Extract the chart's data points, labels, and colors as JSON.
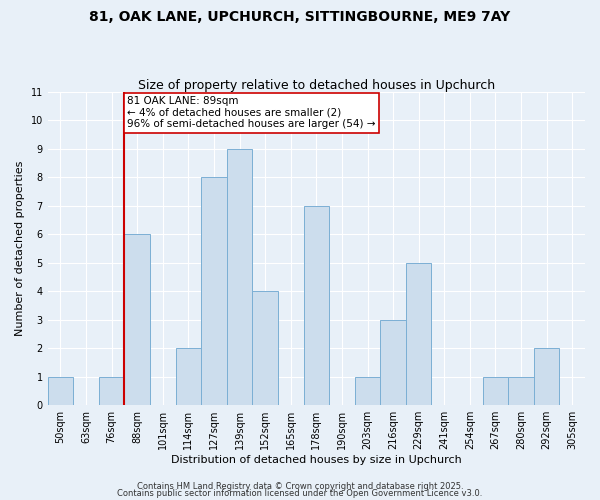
{
  "title1": "81, OAK LANE, UPCHURCH, SITTINGBOURNE, ME9 7AY",
  "title2": "Size of property relative to detached houses in Upchurch",
  "xlabel": "Distribution of detached houses by size in Upchurch",
  "ylabel": "Number of detached properties",
  "bin_labels": [
    "50sqm",
    "63sqm",
    "76sqm",
    "88sqm",
    "101sqm",
    "114sqm",
    "127sqm",
    "139sqm",
    "152sqm",
    "165sqm",
    "178sqm",
    "190sqm",
    "203sqm",
    "216sqm",
    "229sqm",
    "241sqm",
    "254sqm",
    "267sqm",
    "280sqm",
    "292sqm",
    "305sqm"
  ],
  "bar_heights": [
    1,
    0,
    1,
    6,
    0,
    2,
    8,
    9,
    4,
    0,
    7,
    0,
    1,
    3,
    5,
    0,
    0,
    1,
    1,
    2,
    0
  ],
  "bar_color": "#ccdded",
  "bar_edge_color": "#7bafd4",
  "reference_line_x_label": "88sqm",
  "reference_line_color": "#cc0000",
  "annotation_line1": "81 OAK LANE: 89sqm",
  "annotation_line2": "← 4% of detached houses are smaller (2)",
  "annotation_line3": "96% of semi-detached houses are larger (54) →",
  "ylim": [
    0,
    11
  ],
  "yticks": [
    0,
    1,
    2,
    3,
    4,
    5,
    6,
    7,
    8,
    9,
    10,
    11
  ],
  "footer1": "Contains HM Land Registry data © Crown copyright and database right 2025.",
  "footer2": "Contains public sector information licensed under the Open Government Licence v3.0.",
  "bg_color": "#e8f0f8",
  "grid_color": "#ffffff",
  "title1_fontsize": 10,
  "title2_fontsize": 9,
  "axis_label_fontsize": 8,
  "tick_fontsize": 7,
  "annotation_fontsize": 7.5,
  "footer_fontsize": 6
}
